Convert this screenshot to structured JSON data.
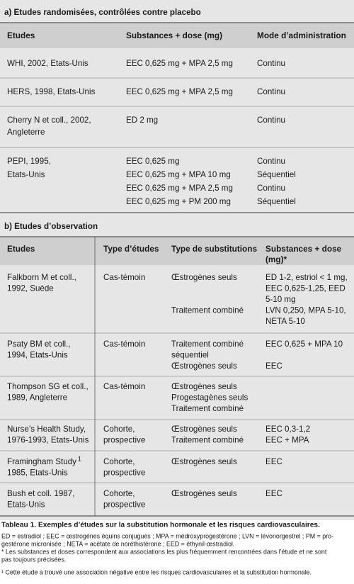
{
  "section_a": {
    "title": "a) Etudes randomisées, contrôlées contre placebo",
    "headers": [
      [
        "Etudes"
      ],
      [
        "Substances + dose (mg)"
      ],
      [
        "Mode d’administration"
      ]
    ],
    "rows": [
      {
        "study": [
          "WHI, 2002, Etats-Unis"
        ],
        "substances": [
          "EEC 0,625 mg + MPA 2,5 mg"
        ],
        "mode": [
          "Continu"
        ]
      },
      {
        "study": [
          "HERS, 1998, Etats-Unis"
        ],
        "substances": [
          "EEC 0,625 mg + MPA 2,5 mg"
        ],
        "mode": [
          "Continu"
        ]
      },
      {
        "study": [
          "Cherry N et coll., 2002,",
          "Angleterre"
        ],
        "substances": [
          "ED 2 mg"
        ],
        "mode": [
          "Continu"
        ]
      },
      {
        "study": [
          "PEPI, 1995,",
          "Etats-Unis"
        ],
        "substances": [
          "EEC 0,625 mg",
          "EEC 0,625 mg + MPA 10 mg",
          "EEC 0,625 mg + MPA 2,5 mg",
          "EEC 0,625 mg + PM 200 mg"
        ],
        "mode": [
          "Continu",
          "Séquentiel",
          "Continu",
          "Séquentiel"
        ]
      }
    ]
  },
  "section_b": {
    "title": "b) Etudes d’observation",
    "headers": [
      [
        "Etudes"
      ],
      [
        "Type d’études"
      ],
      [
        "Type de substitutions"
      ],
      [
        "Substances + dose",
        "(mg)*"
      ]
    ],
    "rows": [
      {
        "study": [
          "Falkborn M et coll.,",
          "1992, Suède"
        ],
        "design": [
          "Cas-témoin"
        ],
        "substitution": [
          "Œstrogènes seuls",
          "Traitement combiné"
        ],
        "substances": [
          "ED 1-2, estriol < 1 mg,",
          "EEC 0,625-1,25, EED",
          "5-10 mg",
          "LVN 0,250, MPA 5-10,",
          "NETA 5-10"
        ]
      },
      {
        "study": [
          "Psaty BM et coll.,",
          "1994, Etats-Unis"
        ],
        "design": [
          "Cas-témoin"
        ],
        "substitution": [
          "Traitement combiné",
          "séquentiel",
          "Œstrogènes seuls"
        ],
        "substances": [
          "EEC 0,625 + MPA 10",
          "EEC"
        ]
      },
      {
        "study": [
          "Thompson SG et coll.,",
          "1989, Angleterre"
        ],
        "design": [
          "Cas-témoin"
        ],
        "substitution": [
          "Œstrogènes seuls",
          "Progestagènes seuls",
          "Traitement combiné"
        ],
        "substances": []
      },
      {
        "study": [
          "Nurse’s Health Study,",
          "1976-1993, Etats-Unis"
        ],
        "design": [
          "Cohorte,",
          "prospective"
        ],
        "substitution": [
          "Œstrogènes seuls",
          "Traitement combiné"
        ],
        "substances": [
          "EEC 0,3-1,2",
          "EEC + MPA"
        ]
      },
      {
        "study": [
          "Framingham Study",
          "1985, Etats-Unis"
        ],
        "study_mark": "1",
        "design": [
          "Cohorte,",
          "prospective"
        ],
        "substitution": [
          "Œstrogènes seuls"
        ],
        "substances": [
          "EEC"
        ]
      },
      {
        "study": [
          "Bush et coll. 1987,",
          "Etats-Unis"
        ],
        "design": [
          "Cohorte,",
          "prospective"
        ],
        "substitution": [
          "Œstrogènes seuls"
        ],
        "substances": [
          "EEC"
        ]
      }
    ]
  },
  "caption": {
    "title": "Tableau 1. Exemples d’études sur la substitution hormonale et les risques cardiovasculaires.",
    "notes": [
      "ED = estradiol ; EEC = œstrogènes équins conjugués ; MPA = médroxyprogestérone ; LVN = lévonorgestrel ; PM = pro-",
      "gestérone micronisée ; NETA = acétate de noréthistérone ; EED = éthynil-œstradiol.",
      "* Les substances et doses correspondent aux associations les plus fréquemment rencontrées dans l’étude et ne sont",
      "pas toujours précisées."
    ],
    "footnote": "¹ Cette étude a trouvé une association négative entre les risques cardiovasculaires et la substitution hormonale."
  }
}
